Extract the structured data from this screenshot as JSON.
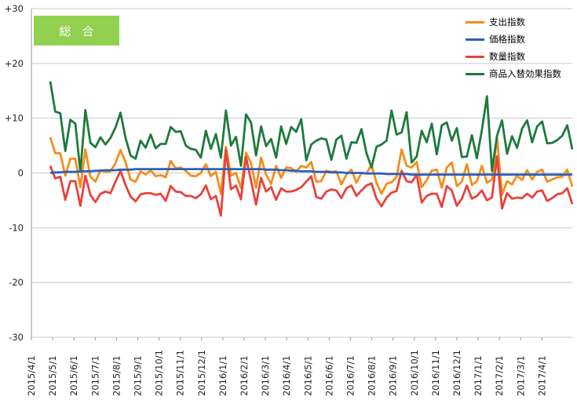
{
  "badge_label": "総合",
  "chart_data": {
    "type": "line",
    "ylim": [
      -30,
      30
    ],
    "y_ticks": [
      "+30",
      "+20",
      "+10",
      "0",
      "-10",
      "-20",
      "-30"
    ],
    "x_ticks": [
      "2015/4/1",
      "2015/5/1",
      "2015/6/1",
      "2015/7/1",
      "2015/8/1",
      "2015/9/1",
      "2015/10/1",
      "2015/11/1",
      "2015/12/1",
      "2016/1/1",
      "2016/2/1",
      "2016/3/1",
      "2016/4/1",
      "2016/5/1",
      "2016/6/1",
      "2016/7/1",
      "2016/8/1",
      "2016/9/1",
      "2016/10/1",
      "2016/11/1",
      "2016/12/1",
      "2017/1/1",
      "2017/2/1",
      "2017/3/1",
      "2017/4/1"
    ],
    "grid": "horizontal",
    "legend_position": "top-right",
    "series": [
      {
        "name": "支出指数",
        "color": "#f28e1c",
        "values": [
          6.5,
          3.6,
          3.6,
          -0.5,
          2.6,
          2.6,
          -2.6,
          4.3,
          -0.7,
          -1.6,
          0.5,
          0.2,
          0.3,
          1.8,
          4.2,
          2,
          -1.2,
          -1.6,
          0.3,
          -0.3,
          0.5,
          -0.6,
          -0.4,
          -0.8,
          2.2,
          0.8,
          1,
          0.4,
          -0.5,
          -0.6,
          0,
          1.6,
          -0.6,
          0.2,
          -3.8,
          4.8,
          -0.5,
          0,
          -2.8,
          3.7,
          1.8,
          -2.7,
          2.8,
          -0.3,
          -2,
          1.3,
          -0.9,
          1,
          0.9,
          0.2,
          1.3,
          1,
          2,
          -1.6,
          -1.5,
          0.4,
          0.2,
          0.3,
          -2.1,
          -0.3,
          0.6,
          -1.8,
          0,
          -0.1,
          1.5,
          -1.8,
          -3.8,
          -2,
          -1.7,
          -0.7,
          4.3,
          1.3,
          1,
          2,
          -2.6,
          -1.3,
          0.4,
          0.6,
          -2.7,
          1,
          1.9,
          -2.4,
          -1.6,
          1.6,
          -2.2,
          -1.5,
          1.3,
          -1.8,
          -1.2,
          6.5,
          -4,
          -1.5,
          -2.1,
          -0.5,
          -1.3,
          0.5,
          -1.2,
          0.2,
          0.6,
          -1.6,
          -1.2,
          -0.8,
          -0.7,
          0.6,
          -2.5
        ]
      },
      {
        "name": "価格指数",
        "color": "#2e5fb6",
        "values": [
          0,
          0.1,
          0.1,
          0.2,
          0.2,
          0.2,
          0.3,
          0.3,
          0.3,
          0.4,
          0.4,
          0.5,
          0.5,
          0.5,
          0.6,
          0.6,
          0.6,
          0.7,
          0.7,
          0.7,
          0.7,
          0.7,
          0.7,
          0.7,
          0.7,
          0.7,
          0.7,
          0.7,
          0.7,
          0.7,
          0.7,
          0.7,
          0.7,
          0.7,
          0.7,
          0.7,
          0.7,
          0.7,
          0.7,
          0.7,
          0.7,
          0.7,
          0.7,
          0.6,
          0.6,
          0.6,
          0.5,
          0.5,
          0.4,
          0.4,
          0.3,
          0.3,
          0.3,
          0.2,
          0.2,
          0.2,
          0.1,
          0.1,
          0.1,
          0,
          0,
          0,
          0,
          -0.1,
          -0.1,
          -0.1,
          -0.1,
          -0.2,
          -0.2,
          -0.2,
          -0.2,
          -0.2,
          -0.3,
          -0.3,
          -0.3,
          -0.3,
          -0.3,
          -0.3,
          -0.3,
          -0.3,
          -0.3,
          -0.3,
          -0.3,
          -0.3,
          -0.3,
          -0.3,
          -0.3,
          -0.3,
          -0.3,
          -0.3,
          -0.3,
          -0.3,
          -0.3,
          -0.3,
          -0.3,
          -0.3,
          -0.3,
          -0.3,
          -0.3,
          -0.3,
          -0.3,
          -0.3,
          -0.3,
          -0.3,
          -0.3
        ]
      },
      {
        "name": "数量指数",
        "color": "#e8423c",
        "values": [
          1.3,
          -1,
          -0.7,
          -4.9,
          -1.5,
          -1.5,
          -6,
          -0.5,
          -4,
          -5.3,
          -3.8,
          -3.4,
          -3.7,
          -1.6,
          0.4,
          -2.2,
          -4.3,
          -5.2,
          -3.9,
          -3.7,
          -3.7,
          -4,
          -3.8,
          -5.1,
          -2.4,
          -3.4,
          -3.5,
          -4.2,
          -4.2,
          -4.6,
          -3.9,
          -2.3,
          -4.8,
          -4.2,
          -7.8,
          4.2,
          -3,
          -2.3,
          -4.8,
          2.9,
          -1.4,
          -5.8,
          -0.9,
          -3.4,
          -2.6,
          -4.9,
          -2.8,
          -3.4,
          -3.4,
          -3.1,
          -2.6,
          -1.6,
          -0.6,
          -4.4,
          -4.7,
          -3.4,
          -3,
          -3.2,
          -4.6,
          -2.8,
          -2.3,
          -4.2,
          -3.2,
          -2.3,
          -1.9,
          -4.7,
          -6.1,
          -4.5,
          -3.6,
          -3.3,
          0.4,
          -1.5,
          -1.7,
          -0.3,
          -5.4,
          -4.2,
          -3.8,
          -3.8,
          -6.2,
          -2.4,
          -3.2,
          -6,
          -4.7,
          -2.3,
          -4.7,
          -4.2,
          -3.2,
          -5,
          -4.5,
          3,
          -6.5,
          -3.7,
          -4.7,
          -4.5,
          -4.6,
          -3.8,
          -4.5,
          -3.4,
          -3.2,
          -5.1,
          -4.6,
          -3.9,
          -3.7,
          -2.8,
          -5.7
        ]
      },
      {
        "name": "商品入替効果指数",
        "color": "#1e7a3c",
        "values": [
          16.7,
          11.2,
          10.9,
          4,
          9.7,
          9,
          0.2,
          11.5,
          5.5,
          4.7,
          6.5,
          5.2,
          6.4,
          8.3,
          11,
          6.4,
          3.2,
          2.6,
          5.9,
          4.6,
          7,
          4.5,
          5.3,
          5.3,
          8.4,
          7.5,
          7.6,
          5,
          4.4,
          4.2,
          2.8,
          7.7,
          4.4,
          7.1,
          2.8,
          11.4,
          5,
          6.6,
          1.3,
          10.7,
          9.2,
          3.2,
          8.5,
          4.9,
          6.2,
          2.8,
          8.5,
          5.3,
          8.4,
          7.5,
          9.8,
          2.3,
          5.2,
          5.9,
          6.3,
          6.1,
          2.4,
          6.1,
          6.8,
          2.6,
          5.6,
          5.5,
          8,
          3.6,
          1,
          4.8,
          5.2,
          5.9,
          11.4,
          7,
          7.4,
          11.1,
          1.9,
          3,
          7.7,
          5.6,
          9,
          3.4,
          8.7,
          9.2,
          5.9,
          8.2,
          2.9,
          3,
          6.9,
          2.7,
          7.9,
          14,
          0.4,
          6.8,
          9.6,
          3.5,
          6.7,
          4.6,
          8.1,
          9.6,
          5.6,
          8.5,
          9.4,
          5.4,
          5.5,
          6,
          6.8,
          8.7,
          4.3
        ]
      }
    ]
  }
}
